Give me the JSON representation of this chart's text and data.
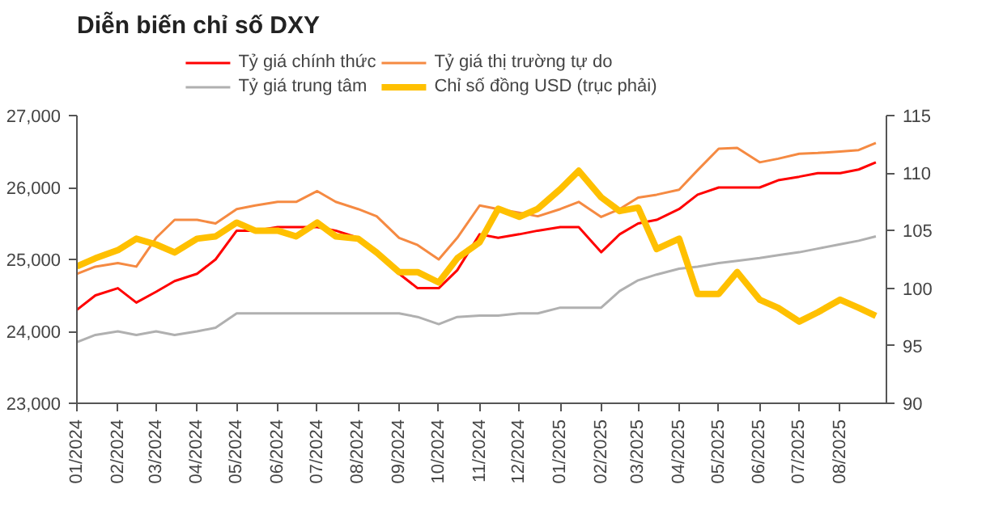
{
  "chart_data": {
    "type": "line",
    "title": "Diễn biến chỉ số DXY",
    "x": [
      "2024-01-01",
      "2024-01-15",
      "2024-02-01",
      "2024-02-15",
      "2024-03-01",
      "2024-03-15",
      "2024-04-01",
      "2024-04-15",
      "2024-05-01",
      "2024-05-15",
      "2024-06-01",
      "2024-06-15",
      "2024-07-01",
      "2024-07-15",
      "2024-08-01",
      "2024-08-15",
      "2024-09-01",
      "2024-09-15",
      "2024-10-01",
      "2024-10-15",
      "2024-11-01",
      "2024-11-15",
      "2024-12-01",
      "2024-12-15",
      "2025-01-01",
      "2025-01-15",
      "2025-02-01",
      "2025-02-15",
      "2025-03-01",
      "2025-03-15",
      "2025-04-01",
      "2025-04-15",
      "2025-05-01",
      "2025-05-15",
      "2025-06-01",
      "2025-06-15",
      "2025-07-01",
      "2025-07-15",
      "2025-08-01",
      "2025-08-15",
      "2025-08-28"
    ],
    "series": [
      {
        "name": "Tỷ giá chính thức",
        "color": "#ff0000",
        "values": [
          24300,
          24500,
          24600,
          24400,
          24550,
          24700,
          24800,
          25000,
          25400,
          25400,
          25450,
          25450,
          25450,
          25400,
          25300,
          25100,
          24800,
          24600,
          24600,
          24850,
          25350,
          25300,
          25350,
          25400,
          25450,
          25450,
          25100,
          25350,
          25500,
          25550,
          25700,
          25900,
          26000,
          26000,
          26000,
          26100,
          26150,
          26200,
          26200,
          26250,
          26350
        ]
      },
      {
        "name": "Tỷ giá thị trường tự do",
        "color": "#f58a42",
        "values": [
          24800,
          24900,
          24950,
          24900,
          25300,
          25550,
          25550,
          25500,
          25700,
          25750,
          25800,
          25800,
          25950,
          25800,
          25700,
          25600,
          25300,
          25200,
          25000,
          25300,
          25750,
          25700,
          25650,
          25600,
          25700,
          25800,
          25590,
          25700,
          25860,
          25900,
          25970,
          26240,
          26540,
          26550,
          26350,
          26400,
          26470,
          26480,
          26500,
          26520,
          26620
        ]
      },
      {
        "name": "Tỷ giá trung tâm",
        "color": "#b0b0b0",
        "values": [
          23850,
          23950,
          24000,
          23950,
          24000,
          23950,
          24000,
          24050,
          24250,
          24250,
          24250,
          24250,
          24250,
          24250,
          24250,
          24250,
          24250,
          24200,
          24100,
          24200,
          24220,
          24220,
          24250,
          24250,
          24330,
          24330,
          24330,
          24560,
          24710,
          24790,
          24870,
          24900,
          24950,
          24980,
          25020,
          25060,
          25100,
          25150,
          25210,
          25260,
          25320
        ]
      },
      {
        "name": "Chỉ số đồng USD (trục phải)",
        "color": "#ffc000",
        "axis": "y2",
        "values": [
          101.9,
          102.6,
          103.3,
          104.3,
          103.8,
          103.1,
          104.3,
          104.5,
          105.7,
          105,
          105,
          104.5,
          105.7,
          104.5,
          104.3,
          103.1,
          101.4,
          101.4,
          100.5,
          102.6,
          104,
          106.9,
          106.2,
          106.9,
          108.6,
          110.2,
          107.9,
          106.7,
          107,
          103.4,
          104.3,
          99.5,
          99.5,
          101.4,
          99,
          98.3,
          97.1,
          97.9,
          99,
          98.3,
          97.6
        ]
      }
    ],
    "xlim": [
      "2024-01-01",
      "2025-09-05"
    ],
    "xticks": [
      {
        "value": "2024-01-01",
        "label": "01/2024"
      },
      {
        "value": "2024-02-01",
        "label": "02/2024"
      },
      {
        "value": "2024-03-01",
        "label": "03/2024"
      },
      {
        "value": "2024-04-01",
        "label": "04/2024"
      },
      {
        "value": "2024-05-01",
        "label": "05/2024"
      },
      {
        "value": "2024-06-01",
        "label": "06/2024"
      },
      {
        "value": "2024-07-01",
        "label": "07/2024"
      },
      {
        "value": "2024-08-01",
        "label": "08/2024"
      },
      {
        "value": "2024-09-01",
        "label": "09/2024"
      },
      {
        "value": "2024-10-01",
        "label": "10/2024"
      },
      {
        "value": "2024-11-01",
        "label": "11/2024"
      },
      {
        "value": "2024-12-01",
        "label": "12/2024"
      },
      {
        "value": "2025-01-01",
        "label": "01/2025"
      },
      {
        "value": "2025-02-01",
        "label": "02/2025"
      },
      {
        "value": "2025-03-01",
        "label": "03/2025"
      },
      {
        "value": "2025-04-01",
        "label": "04/2025"
      },
      {
        "value": "2025-05-01",
        "label": "05/2025"
      },
      {
        "value": "2025-06-01",
        "label": "06/2025"
      },
      {
        "value": "2025-07-01",
        "label": "07/2025"
      },
      {
        "value": "2025-08-01",
        "label": "08/2025"
      }
    ],
    "ylim": [
      23000,
      27000
    ],
    "yticks": [
      {
        "value": 23000,
        "label": "23,000"
      },
      {
        "value": 24000,
        "label": "24,000"
      },
      {
        "value": 25000,
        "label": "25,000"
      },
      {
        "value": 26000,
        "label": "26,000"
      },
      {
        "value": 27000,
        "label": "27,000"
      }
    ],
    "y2lim": [
      90,
      115
    ],
    "y2ticks": [
      90,
      95,
      100,
      105,
      110,
      115
    ],
    "legend": "top",
    "grid": false
  }
}
